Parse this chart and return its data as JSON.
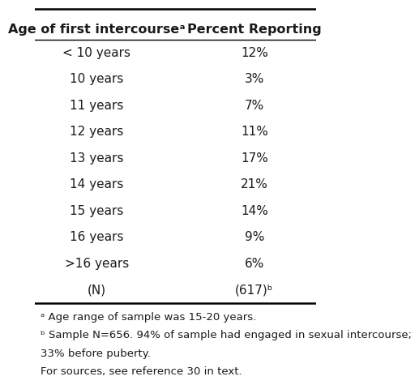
{
  "col1_header": "Age of first intercourseᵃ",
  "col2_header": "Percent Reporting",
  "rows": [
    [
      "< 10 years",
      "12%"
    ],
    [
      "10 years",
      "3%"
    ],
    [
      "11 years",
      "7%"
    ],
    [
      "12 years",
      "11%"
    ],
    [
      "13 years",
      "17%"
    ],
    [
      "14 years",
      "21%"
    ],
    [
      "15 years",
      "14%"
    ],
    [
      "16 years",
      "9%"
    ],
    [
      ">16 years",
      "6%"
    ],
    [
      "(N)",
      "(617)ᵇ"
    ]
  ],
  "footnotes": [
    "ᵃ Age range of sample was 15-20 years.",
    "ᵇ Sample N=656. 94% of sample had engaged in sexual intercourse;",
    "33% before puberty.",
    "For sources, see reference 30 in text."
  ],
  "bg_color": "#ffffff",
  "text_color": "#1a1a1a",
  "header_fontsize": 11.5,
  "row_fontsize": 11,
  "footnote_fontsize": 9.5,
  "fig_width": 4.74,
  "fig_height": 4.53
}
